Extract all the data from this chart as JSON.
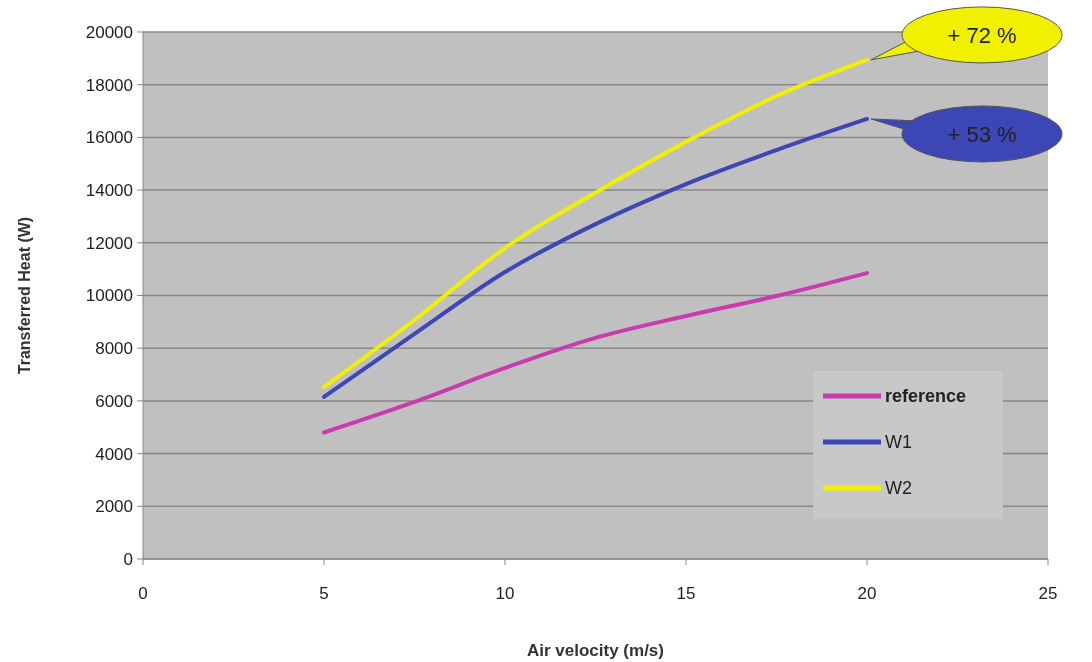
{
  "chart_data": {
    "type": "line",
    "xlabel": "Air velocity (m/s)",
    "ylabel": "Transferred Heat (W)",
    "x": [
      5,
      7.5,
      10,
      12.5,
      15,
      17.5,
      20
    ],
    "series": [
      {
        "name": "reference",
        "color": "#c83cae",
        "values": [
          4800,
          5960,
          7250,
          8390,
          9220,
          9980,
          10850
        ]
      },
      {
        "name": "W1",
        "color": "#3c46b4",
        "values": [
          6150,
          8540,
          10890,
          12710,
          14230,
          15520,
          16700
        ]
      },
      {
        "name": "W2",
        "color": "#f0f000",
        "values": [
          6530,
          9070,
          11800,
          13900,
          15830,
          17570,
          18940
        ]
      }
    ],
    "xlim": [
      0,
      25
    ],
    "xticks": [
      0,
      5,
      10,
      15,
      20,
      25
    ],
    "ylim": [
      0,
      20000
    ],
    "yticks": [
      0,
      2000,
      4000,
      6000,
      8000,
      10000,
      12000,
      14000,
      16000,
      18000,
      20000
    ],
    "grid": "y",
    "legend": "bottom right",
    "marker": "none",
    "line_style": "solid",
    "annotations": [
      {
        "text": "+ 72 %",
        "x": 20,
        "y": 18940
      },
      {
        "text": "+ 53 %",
        "x": 20,
        "y": 16700
      }
    ]
  }
}
